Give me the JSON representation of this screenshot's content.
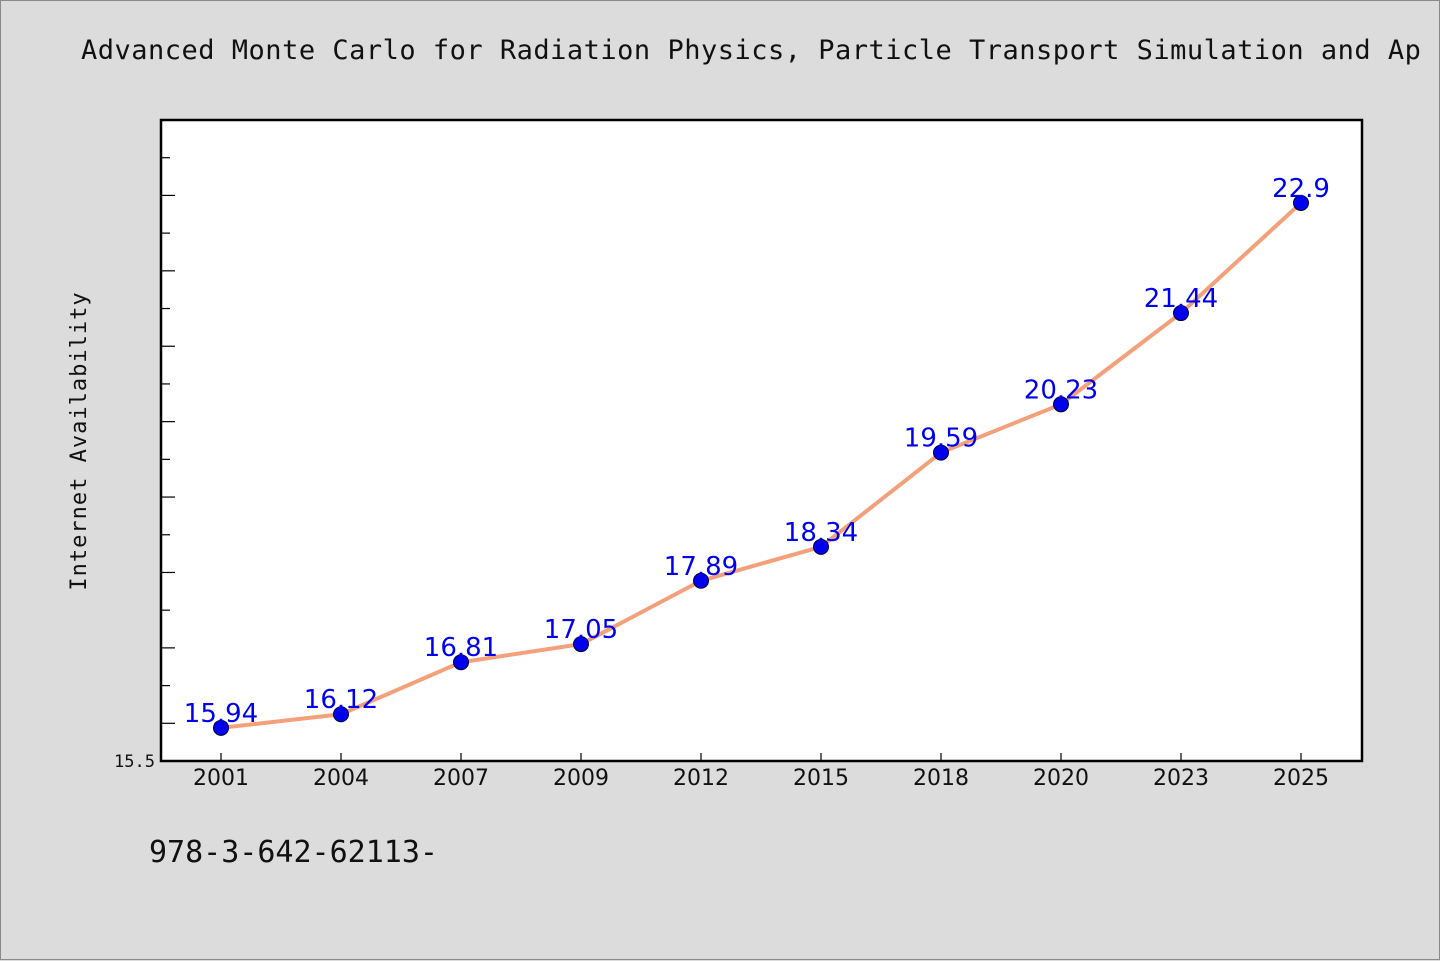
{
  "chart_data": {
    "type": "line",
    "title": "Advanced Monte Carlo for Radiation Physics, Particle Transport Simulation and Ap",
    "xlabel": "",
    "ylabel": "Internet Availability",
    "categories": [
      "2001",
      "2004",
      "2007",
      "2009",
      "2012",
      "2015",
      "2018",
      "2020",
      "2023",
      "2025"
    ],
    "series": [
      {
        "values": [
          15.94,
          16.12,
          16.81,
          17.05,
          17.89,
          18.34,
          19.59,
          20.23,
          21.44,
          22.9
        ]
      }
    ],
    "data_labels": [
      "15.94",
      "16.12",
      "16.81",
      "17.05",
      "17.89",
      "18.34",
      "19.59",
      "20.23",
      "21.44",
      "22.9"
    ],
    "ylim": [
      15.5,
      24.0
    ],
    "y_tick_labels": [
      "15.5"
    ],
    "grid": false,
    "line_color": "#f4a07a",
    "marker_color": "#0000ee",
    "label_color": "#0000ee"
  },
  "footer": {
    "text": "978-3-642-62113-"
  }
}
